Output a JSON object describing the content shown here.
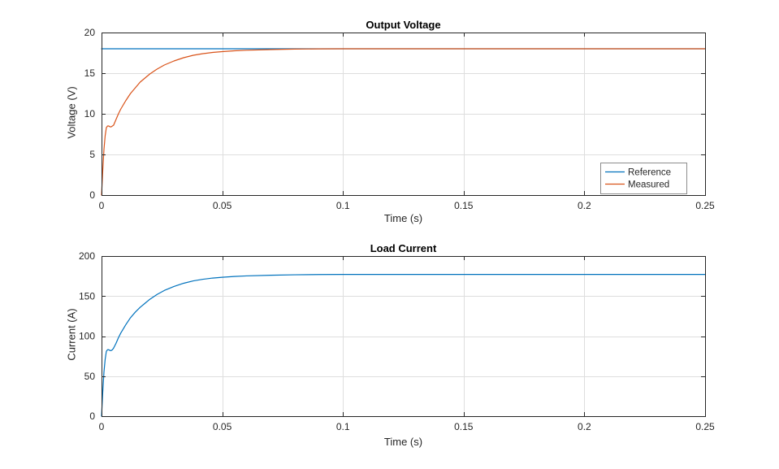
{
  "colors": {
    "reference_line": "#0072BD",
    "measured_line": "#D95319",
    "grid": "#DEDEDE",
    "axis": "#262626",
    "tick_text": "#262626",
    "legend_border": "#8C8C8C",
    "background": "#FFFFFF"
  },
  "chart_data": [
    {
      "id": "voltage",
      "type": "line",
      "title": "Output Voltage",
      "xlabel": "Time (s)",
      "ylabel": "Voltage (V)",
      "xlim": [
        0,
        0.25
      ],
      "ylim": [
        0,
        20
      ],
      "xticks": {
        "values": [
          0,
          0.05,
          0.1,
          0.15,
          0.2,
          0.25
        ],
        "labels": [
          "0",
          "0.05",
          "0.1",
          "0.15",
          "0.2",
          "0.25"
        ]
      },
      "yticks": {
        "values": [
          0,
          5,
          10,
          15,
          20
        ],
        "labels": [
          "0",
          "5",
          "10",
          "15",
          "20"
        ]
      },
      "grid": true,
      "legend": {
        "show": true,
        "position": "bottom-right",
        "entries": [
          "Reference",
          "Measured"
        ]
      },
      "series": [
        {
          "name": "Reference",
          "color": "#0072BD",
          "x": [
            0,
            0.25
          ],
          "y": [
            18,
            18
          ]
        },
        {
          "name": "Measured",
          "color": "#D95319",
          "x": [
            0,
            0.0005,
            0.001,
            0.0015,
            0.002,
            0.0025,
            0.003,
            0.0035,
            0.004,
            0.0045,
            0.005,
            0.006,
            0.007,
            0.008,
            0.009,
            0.01,
            0.012,
            0.014,
            0.016,
            0.018,
            0.02,
            0.023,
            0.026,
            0.03,
            0.034,
            0.038,
            0.042,
            0.046,
            0.05,
            0.055,
            0.06,
            0.07,
            0.08,
            0.09,
            0.1,
            0.12,
            0.15,
            0.2,
            0.25
          ],
          "y": [
            0,
            3.0,
            5.6,
            7.3,
            8.3,
            8.5,
            8.5,
            8.4,
            8.4,
            8.5,
            8.6,
            9.3,
            10.0,
            10.6,
            11.1,
            11.6,
            12.5,
            13.2,
            13.9,
            14.4,
            14.9,
            15.5,
            16.0,
            16.5,
            16.9,
            17.2,
            17.4,
            17.55,
            17.65,
            17.75,
            17.82,
            17.9,
            17.96,
            17.99,
            18,
            18,
            18,
            18,
            18
          ]
        }
      ]
    },
    {
      "id": "current",
      "type": "line",
      "title": "Load Current",
      "xlabel": "Time (s)",
      "ylabel": "Current (A)",
      "xlim": [
        0,
        0.25
      ],
      "ylim": [
        0,
        200
      ],
      "xticks": {
        "values": [
          0,
          0.05,
          0.1,
          0.15,
          0.2,
          0.25
        ],
        "labels": [
          "0",
          "0.05",
          "0.1",
          "0.15",
          "0.2",
          "0.25"
        ]
      },
      "yticks": {
        "values": [
          0,
          50,
          100,
          150,
          200
        ],
        "labels": [
          "0",
          "50",
          "100",
          "150",
          "200"
        ]
      },
      "grid": true,
      "legend": {
        "show": false
      },
      "series": [
        {
          "name": "Load current",
          "color": "#0072BD",
          "x": [
            0,
            0.0005,
            0.001,
            0.0015,
            0.002,
            0.0025,
            0.003,
            0.0035,
            0.004,
            0.0045,
            0.005,
            0.006,
            0.007,
            0.008,
            0.009,
            0.01,
            0.012,
            0.014,
            0.016,
            0.018,
            0.02,
            0.023,
            0.026,
            0.03,
            0.034,
            0.038,
            0.042,
            0.046,
            0.05,
            0.055,
            0.06,
            0.07,
            0.08,
            0.09,
            0.1,
            0.12,
            0.15,
            0.2,
            0.25
          ],
          "y": [
            0,
            30,
            55,
            71,
            81,
            83,
            83,
            82,
            82,
            83,
            85,
            91,
            98,
            104,
            109,
            114,
            123,
            130,
            136,
            141,
            146,
            152,
            157,
            162,
            166,
            169,
            171,
            172.5,
            173.5,
            174.5,
            175.2,
            176,
            176.6,
            176.9,
            177,
            177,
            177,
            177,
            177
          ]
        }
      ]
    }
  ]
}
